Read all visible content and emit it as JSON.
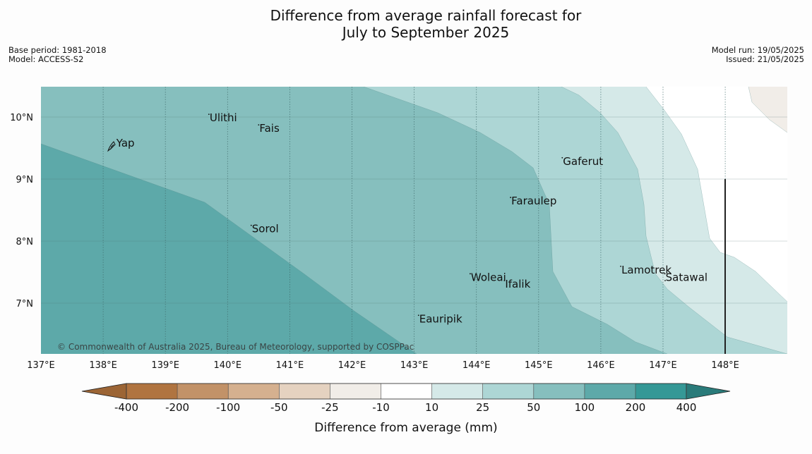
{
  "title": {
    "line1": "Difference from average rainfall forecast for",
    "line2": "July to September 2025"
  },
  "meta_left": {
    "base_period": "Base period: 1981-2018",
    "model": "Model: ACCESS-S2"
  },
  "meta_right": {
    "model_run": "Model run: 19/05/2025",
    "issued": "Issued: 21/05/2025"
  },
  "map": {
    "lon_range": [
      137,
      149
    ],
    "lat_range": [
      6.2,
      10.5
    ],
    "lon_labels": [
      "137°E",
      "138°E",
      "139°E",
      "140°E",
      "141°E",
      "142°E",
      "143°E",
      "144°E",
      "145°E",
      "146°E",
      "147°E",
      "148°E"
    ],
    "lat_labels": [
      "10°N",
      "9°N",
      "8°N",
      "7°N"
    ],
    "places": [
      {
        "name": "Yap",
        "lon": 138.2,
        "lat": 9.52
      },
      {
        "name": "Ulithi",
        "lon": 139.7,
        "lat": 9.93
      },
      {
        "name": "Fais",
        "lon": 140.5,
        "lat": 9.76
      },
      {
        "name": "Sorol",
        "lon": 140.38,
        "lat": 8.14
      },
      {
        "name": "Gaferut",
        "lon": 145.38,
        "lat": 9.23
      },
      {
        "name": "Faraulep",
        "lon": 144.55,
        "lat": 8.59
      },
      {
        "name": "Woleai",
        "lon": 143.9,
        "lat": 7.36
      },
      {
        "name": "Ifalik",
        "lon": 144.45,
        "lat": 7.25
      },
      {
        "name": "Lamotrek",
        "lon": 146.32,
        "lat": 7.48
      },
      {
        "name": "Satawal",
        "lon": 147.03,
        "lat": 7.36
      },
      {
        "name": "Eauripik",
        "lon": 143.07,
        "lat": 6.69
      }
    ],
    "copyright": "© Commonwealth of Australia 2025, Bureau of Meteorology, supported by COSPPac"
  },
  "colorbar": {
    "ticks": [
      "-400",
      "-200",
      "-100",
      "-50",
      "-25",
      "-10",
      "10",
      "25",
      "50",
      "100",
      "200",
      "400"
    ],
    "colors": [
      "#9c6535",
      "#b07440",
      "#c29268",
      "#d5b08f",
      "#e5d2c0",
      "#f1ede8",
      "#ffffff",
      "#d5e9e8",
      "#add6d5",
      "#86bfbe",
      "#5da9a9",
      "#359896",
      "#2a7b7a"
    ],
    "label": "Difference from average (mm)"
  },
  "zone_colors": {
    "band_200": "#5da9a9",
    "band_100": "#86bfbe",
    "band_50": "#add6d5",
    "band_25": "#d5e9e8",
    "band_10": "#ffffff",
    "band_neg25": "#f1ede8"
  }
}
